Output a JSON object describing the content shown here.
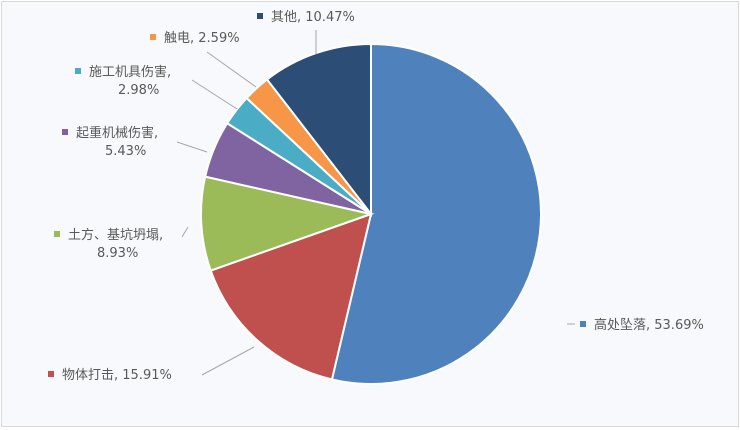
{
  "chart_data": {
    "type": "pie",
    "start_angle": "12 o'clock",
    "direction": "clockwise",
    "legend": "none (data labels with category name and percent)",
    "slices": [
      {
        "label": "高处坠落",
        "value": 53.69,
        "text": "53.69%",
        "color": "#4f81bd"
      },
      {
        "label": "物体打击",
        "value": 15.91,
        "text": "15.91%",
        "color": "#c0504d"
      },
      {
        "label": "土方、基坑坍塌",
        "value": 8.93,
        "text": "8.93%",
        "color": "#9bbb59"
      },
      {
        "label": "起重机械伤害",
        "value": 5.43,
        "text": "5.43%",
        "color": "#8064a2"
      },
      {
        "label": "施工机具伤害",
        "value": 2.98,
        "text": "2.98%",
        "color": "#4bacc6"
      },
      {
        "label": "触电",
        "value": 2.59,
        "text": "2.59%",
        "color": "#f79646"
      },
      {
        "label": "其他",
        "value": 10.47,
        "text": "10.47%",
        "color": "#2c4d75"
      }
    ]
  }
}
